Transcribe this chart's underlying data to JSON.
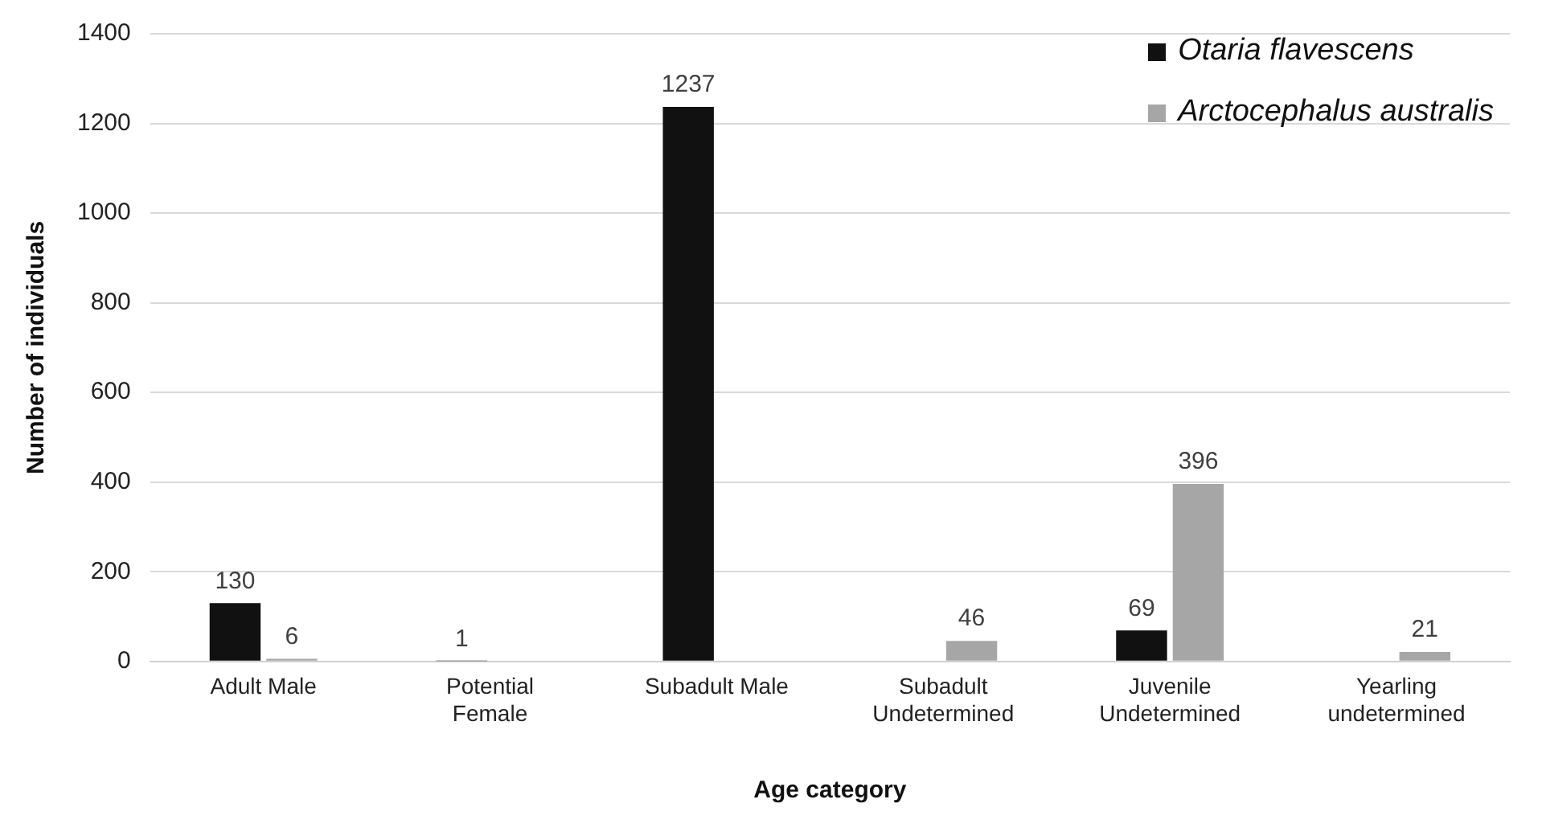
{
  "chart_data": {
    "type": "bar",
    "xlabel": "Age category",
    "ylabel": "Number of individuals",
    "categories": [
      "Adult Male",
      "Potential Female",
      "Subadult Male",
      "Subadult Undetermined",
      "Juvenile Undetermined",
      "Yearling undetermined"
    ],
    "series": [
      {
        "name": "Otaria flavescens",
        "color": "#111111",
        "values": [
          130,
          1,
          1237,
          null,
          69,
          null
        ]
      },
      {
        "name": "Arctocephalus australis",
        "color": "#a6a6a6",
        "values": [
          6,
          null,
          null,
          46,
          396,
          21
        ]
      }
    ],
    "ylim": [
      0,
      1400
    ],
    "yticks": [
      0,
      200,
      400,
      600,
      800,
      1000,
      1200,
      1400
    ],
    "grid": "y",
    "legend": "top right",
    "data_labels": true
  }
}
